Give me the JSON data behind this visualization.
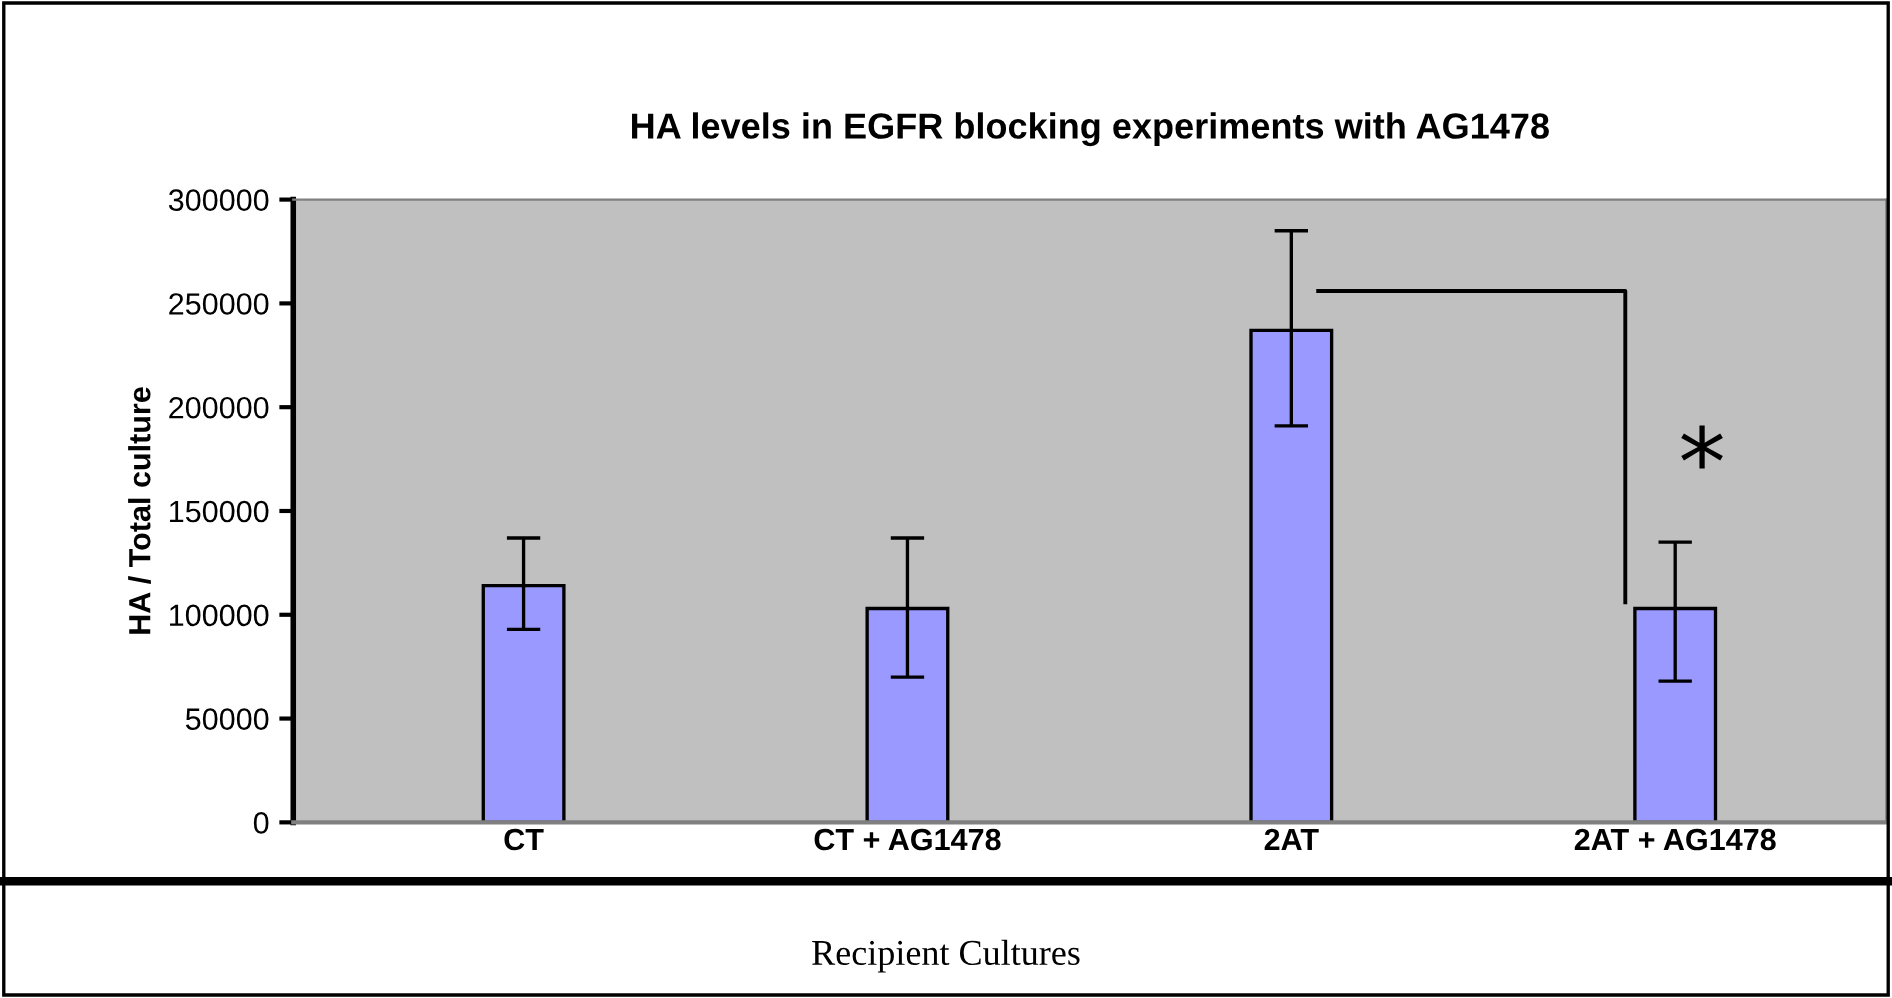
{
  "chart_data": {
    "type": "bar",
    "title": "HA levels in EGFR blocking experiments with AG1478",
    "xlabel": "Recipient Cultures",
    "ylabel": "HA / Total culture",
    "categories": [
      "CT",
      "CT + AG1478",
      "2AT",
      "2AT + AG1478"
    ],
    "values": [
      114000,
      103000,
      237000,
      103000
    ],
    "errors": [
      [
        93000,
        137000
      ],
      [
        70000,
        137000
      ],
      [
        191000,
        285000
      ],
      [
        68000,
        135000
      ]
    ],
    "color": "#9999ff",
    "ylim": [
      0,
      300000
    ],
    "yticks": [
      0,
      50000,
      100000,
      150000,
      200000,
      250000,
      300000
    ],
    "grid": false,
    "legend": false,
    "annotations": [
      "*"
    ]
  }
}
